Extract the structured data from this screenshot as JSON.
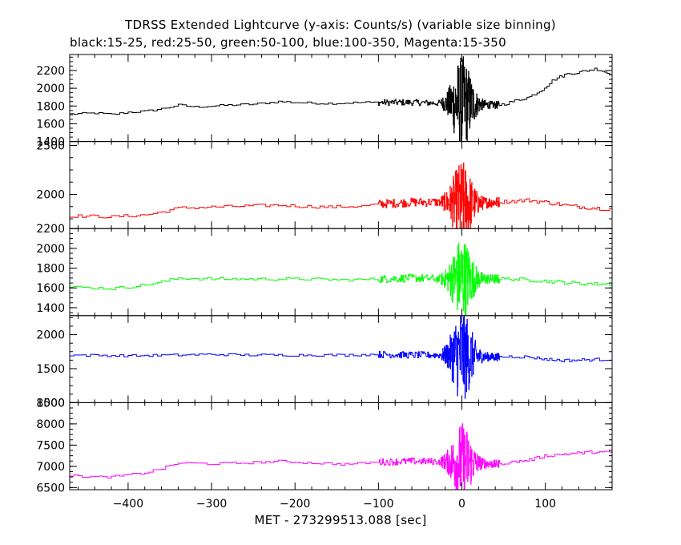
{
  "chart_data": {
    "type": "line",
    "title": "TDRSS Extended Lightcurve (y-axis: Counts/s) (variable size binning)",
    "subtitle": "black:15-25, red:25-50, green:50-100, blue:100-350, Magenta:15-350",
    "xlabel": "MET - 273299513.088 [sec]",
    "xlim": [
      -470,
      180
    ],
    "xticks": [
      -400,
      -300,
      -200,
      -100,
      0,
      100
    ],
    "xtick_labels": [
      "−400",
      "−300",
      "−200",
      "−100",
      "0",
      "100"
    ],
    "panels": [
      {
        "name": "black:15-25",
        "color": "#000000",
        "ylim": [
          1400,
          2380
        ],
        "yticks": [
          1400,
          1600,
          1800,
          2000,
          2200
        ],
        "ytick_labels": [
          "1400",
          "1600",
          "1800",
          "2000",
          "2200"
        ],
        "baseline": [
          [
            -470,
            1710
          ],
          [
            -440,
            1720
          ],
          [
            -420,
            1705
          ],
          [
            -400,
            1730
          ],
          [
            -380,
            1740
          ],
          [
            -360,
            1770
          ],
          [
            -340,
            1810
          ],
          [
            -320,
            1790
          ],
          [
            -300,
            1800
          ],
          [
            -280,
            1810
          ],
          [
            -250,
            1820
          ],
          [
            -220,
            1850
          ],
          [
            -200,
            1840
          ],
          [
            -170,
            1830
          ],
          [
            -150,
            1830
          ],
          [
            -120,
            1840
          ],
          [
            -100,
            1840
          ],
          [
            -60,
            1840
          ],
          [
            -20,
            1830
          ],
          [
            0,
            1830
          ],
          [
            20,
            1820
          ],
          [
            40,
            1810
          ],
          [
            50,
            1820
          ],
          [
            60,
            1850
          ],
          [
            80,
            1900
          ],
          [
            95,
            1980
          ],
          [
            110,
            2100
          ],
          [
            125,
            2160
          ],
          [
            140,
            2180
          ],
          [
            160,
            2220
          ],
          [
            170,
            2190
          ],
          [
            180,
            2140
          ]
        ],
        "burst_amplitude": 500,
        "noise": 35
      },
      {
        "name": "red:25-50",
        "color": "#ff0000",
        "ylim": [
          1650,
          2540
        ],
        "yticks": [
          2000,
          2500
        ],
        "ytick_labels": [
          "2000",
          "2500"
        ],
        "baseline": [
          [
            -470,
            1780
          ],
          [
            -440,
            1775
          ],
          [
            -420,
            1770
          ],
          [
            -400,
            1780
          ],
          [
            -380,
            1790
          ],
          [
            -360,
            1820
          ],
          [
            -340,
            1860
          ],
          [
            -300,
            1870
          ],
          [
            -260,
            1880
          ],
          [
            -220,
            1890
          ],
          [
            -200,
            1880
          ],
          [
            -160,
            1870
          ],
          [
            -120,
            1880
          ],
          [
            -100,
            1900
          ],
          [
            -60,
            1920
          ],
          [
            -20,
            1920
          ],
          [
            0,
            1910
          ],
          [
            20,
            1910
          ],
          [
            40,
            1920
          ],
          [
            60,
            1930
          ],
          [
            80,
            1940
          ],
          [
            100,
            1920
          ],
          [
            130,
            1880
          ],
          [
            160,
            1860
          ],
          [
            180,
            1850
          ]
        ],
        "burst_amplitude": 380,
        "noise": 45
      },
      {
        "name": "green:50-100",
        "color": "#00ff00",
        "ylim": [
          1320,
          2200
        ],
        "yticks": [
          1400,
          1600,
          1800,
          2000,
          2200
        ],
        "ytick_labels": [
          "1400",
          "1600",
          "1800",
          "2000",
          "2200"
        ],
        "baseline": [
          [
            -470,
            1610
          ],
          [
            -440,
            1600
          ],
          [
            -420,
            1595
          ],
          [
            -400,
            1610
          ],
          [
            -380,
            1630
          ],
          [
            -360,
            1660
          ],
          [
            -340,
            1700
          ],
          [
            -300,
            1690
          ],
          [
            -260,
            1690
          ],
          [
            -220,
            1690
          ],
          [
            -180,
            1690
          ],
          [
            -140,
            1680
          ],
          [
            -100,
            1690
          ],
          [
            -60,
            1700
          ],
          [
            -20,
            1690
          ],
          [
            0,
            1700
          ],
          [
            20,
            1690
          ],
          [
            40,
            1690
          ],
          [
            60,
            1690
          ],
          [
            80,
            1680
          ],
          [
            100,
            1670
          ],
          [
            130,
            1650
          ],
          [
            160,
            1640
          ],
          [
            180,
            1640
          ]
        ],
        "burst_amplitude": 380,
        "noise": 40
      },
      {
        "name": "blue:100-350",
        "color": "#0000ff",
        "ylim": [
          1000,
          2280
        ],
        "yticks": [
          1000,
          1500,
          2000
        ],
        "ytick_labels": [
          "1000",
          "1500",
          "2000"
        ],
        "baseline": [
          [
            -470,
            1700
          ],
          [
            -400,
            1690
          ],
          [
            -340,
            1700
          ],
          [
            -300,
            1710
          ],
          [
            -260,
            1700
          ],
          [
            -220,
            1700
          ],
          [
            -180,
            1700
          ],
          [
            -140,
            1700
          ],
          [
            -100,
            1710
          ],
          [
            -60,
            1700
          ],
          [
            -20,
            1700
          ],
          [
            0,
            1700
          ],
          [
            20,
            1680
          ],
          [
            40,
            1670
          ],
          [
            60,
            1680
          ],
          [
            80,
            1670
          ],
          [
            100,
            1640
          ],
          [
            120,
            1620
          ],
          [
            150,
            1630
          ],
          [
            180,
            1640
          ]
        ],
        "burst_amplitude": 650,
        "noise": 50
      },
      {
        "name": "Magenta:15-350",
        "color": "#ff00ff",
        "ylim": [
          6450,
          8500
        ],
        "yticks": [
          6500,
          7000,
          7500,
          8000,
          8500
        ],
        "ytick_labels": [
          "6500",
          "7000",
          "7500",
          "8000",
          "8500"
        ],
        "baseline": [
          [
            -470,
            6780
          ],
          [
            -440,
            6750
          ],
          [
            -420,
            6750
          ],
          [
            -400,
            6800
          ],
          [
            -380,
            6850
          ],
          [
            -360,
            6950
          ],
          [
            -340,
            7080
          ],
          [
            -300,
            7060
          ],
          [
            -260,
            7080
          ],
          [
            -220,
            7120
          ],
          [
            -180,
            7080
          ],
          [
            -140,
            7050
          ],
          [
            -100,
            7100
          ],
          [
            -60,
            7120
          ],
          [
            -20,
            7110
          ],
          [
            0,
            7100
          ],
          [
            20,
            7080
          ],
          [
            40,
            7050
          ],
          [
            60,
            7100
          ],
          [
            80,
            7150
          ],
          [
            100,
            7250
          ],
          [
            130,
            7300
          ],
          [
            160,
            7340
          ],
          [
            180,
            7320
          ]
        ],
        "burst_amplitude": 850,
        "noise": 80
      }
    ]
  }
}
